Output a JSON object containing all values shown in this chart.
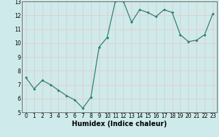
{
  "x": [
    0,
    1,
    2,
    3,
    4,
    5,
    6,
    7,
    8,
    9,
    10,
    11,
    12,
    13,
    14,
    15,
    16,
    17,
    18,
    19,
    20,
    21,
    22,
    23
  ],
  "y": [
    7.5,
    6.7,
    7.3,
    7.0,
    6.6,
    6.2,
    5.9,
    5.3,
    6.1,
    9.7,
    10.4,
    13.0,
    13.0,
    11.5,
    12.4,
    12.2,
    11.9,
    12.4,
    12.2,
    10.6,
    10.1,
    10.2,
    10.6,
    12.1
  ],
  "line_color": "#2e7d6e",
  "marker": "D",
  "marker_size": 1.8,
  "linewidth": 0.9,
  "xlabel": "Humidex (Indice chaleur)",
  "xlim": [
    -0.5,
    23.5
  ],
  "ylim": [
    5,
    13
  ],
  "yticks": [
    5,
    6,
    7,
    8,
    9,
    10,
    11,
    12,
    13
  ],
  "xticks": [
    0,
    1,
    2,
    3,
    4,
    5,
    6,
    7,
    8,
    9,
    10,
    11,
    12,
    13,
    14,
    15,
    16,
    17,
    18,
    19,
    20,
    21,
    22,
    23
  ],
  "bg_color": "#ceeaea",
  "grid_color": "#e8c8c8",
  "tick_fontsize": 5.5,
  "xlabel_fontsize": 7.0
}
